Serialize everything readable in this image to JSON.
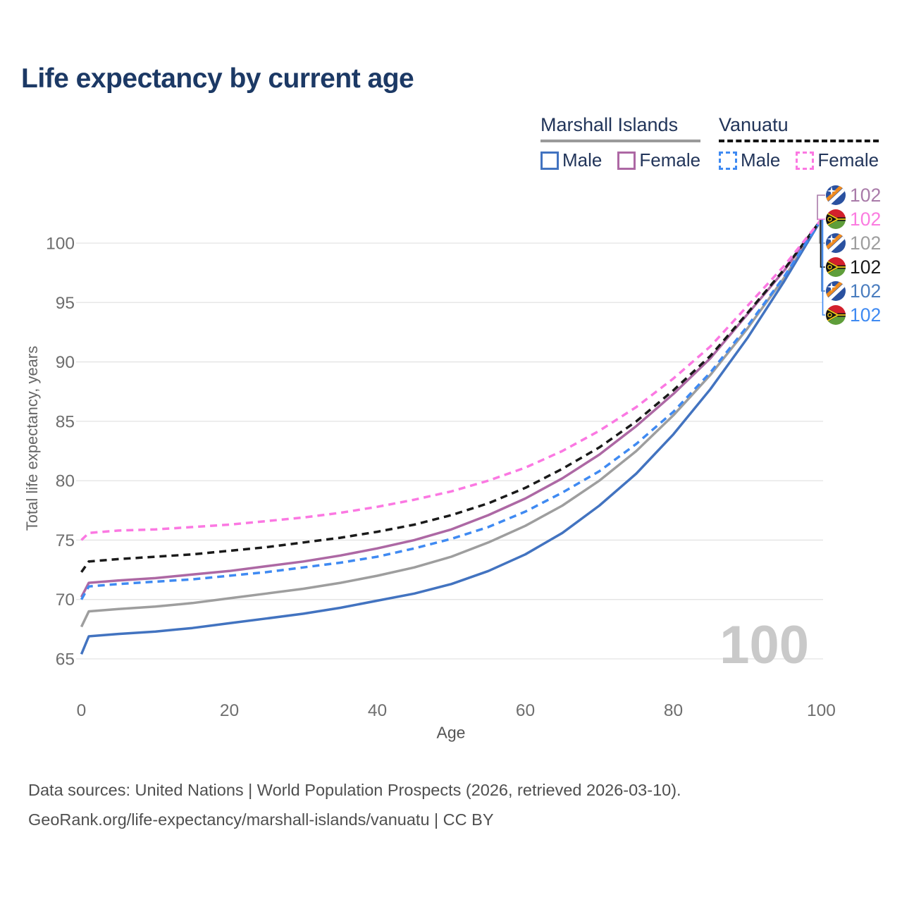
{
  "title": "Life expectancy by current age",
  "legend": {
    "groups": [
      {
        "label": "Marshall Islands",
        "underline": "solid",
        "underline_color": "#9a9a9a",
        "items": [
          {
            "label": "Male",
            "color": "#4273c0",
            "dashed": false
          },
          {
            "label": "Female",
            "color": "#ad68a4",
            "dashed": false
          }
        ]
      },
      {
        "label": "Vanuatu",
        "underline": "dashed",
        "underline_color": "#141414",
        "items": [
          {
            "label": "Male",
            "color": "#3f8af2",
            "dashed": true
          },
          {
            "label": "Female",
            "color": "#fb78e2",
            "dashed": true
          }
        ]
      }
    ]
  },
  "chart_data": {
    "type": "line",
    "title": "Life expectancy by current age",
    "xlabel": "Age",
    "ylabel": "Total life expectancy, years",
    "xticks": [
      0,
      20,
      40,
      60,
      80,
      100
    ],
    "yticks": [
      65,
      70,
      75,
      80,
      85,
      90,
      95,
      100
    ],
    "xlim": [
      0,
      100
    ],
    "ylim": [
      63,
      103
    ],
    "grid": "horizontal",
    "legend_position": "top-right",
    "watermark": "100",
    "x_ages": [
      0,
      1,
      5,
      10,
      15,
      20,
      25,
      30,
      35,
      40,
      45,
      50,
      55,
      60,
      65,
      70,
      75,
      80,
      85,
      90,
      95,
      100
    ],
    "series": [
      {
        "id": "mi-total",
        "country": "Marshall Islands",
        "sex": "Total",
        "flag": "mh",
        "color": "#9e9e9e",
        "dashed": false,
        "label_color": "#9e9e9e",
        "label_slot": 2,
        "end_label": "102",
        "values": [
          67.7,
          69.0,
          69.2,
          69.4,
          69.7,
          70.1,
          70.5,
          70.9,
          71.4,
          72.0,
          72.7,
          73.6,
          74.8,
          76.2,
          77.9,
          80.0,
          82.5,
          85.5,
          88.9,
          92.8,
          97.1,
          102
        ]
      },
      {
        "id": "mi-female",
        "country": "Marshall Islands",
        "sex": "Female",
        "flag": "mh",
        "color": "#ad68a4",
        "dashed": false,
        "label_color": "#a97ba9",
        "label_slot": 0,
        "end_label": "102",
        "values": [
          70.2,
          71.4,
          71.6,
          71.8,
          72.1,
          72.4,
          72.8,
          73.2,
          73.7,
          74.3,
          75.0,
          75.9,
          77.1,
          78.5,
          80.2,
          82.2,
          84.6,
          87.3,
          90.3,
          94.0,
          97.7,
          102
        ]
      },
      {
        "id": "mi-male",
        "country": "Marshall Islands",
        "sex": "Male",
        "flag": "mh",
        "color": "#4273c0",
        "dashed": false,
        "label_color": "#4a7dbf",
        "label_slot": 4,
        "end_label": "102",
        "values": [
          65.4,
          66.9,
          67.1,
          67.3,
          67.6,
          68.0,
          68.4,
          68.8,
          69.3,
          69.9,
          70.5,
          71.3,
          72.4,
          73.8,
          75.6,
          77.9,
          80.6,
          83.9,
          87.7,
          92.0,
          96.8,
          102
        ]
      },
      {
        "id": "vu-total",
        "country": "Vanuatu",
        "sex": "Total",
        "flag": "vu",
        "color": "#1a1a1a",
        "dashed": true,
        "label_color": "#1a1a1a",
        "label_slot": 3,
        "end_label": "102",
        "values": [
          72.3,
          73.2,
          73.4,
          73.6,
          73.8,
          74.1,
          74.4,
          74.8,
          75.2,
          75.7,
          76.3,
          77.1,
          78.1,
          79.4,
          81.0,
          82.8,
          85.0,
          87.6,
          90.5,
          94.1,
          97.8,
          102
        ]
      },
      {
        "id": "vu-male",
        "country": "Vanuatu",
        "sex": "Male",
        "flag": "vu",
        "color": "#3f8af2",
        "dashed": true,
        "label_color": "#3f8af2",
        "label_slot": 5,
        "end_label": "102",
        "values": [
          70.0,
          71.1,
          71.3,
          71.5,
          71.7,
          72.0,
          72.3,
          72.7,
          73.1,
          73.6,
          74.3,
          75.1,
          76.1,
          77.4,
          79.0,
          80.8,
          83.1,
          85.8,
          89.1,
          93.0,
          97.2,
          102
        ]
      },
      {
        "id": "vu-female",
        "country": "Vanuatu",
        "sex": "Female",
        "flag": "vu",
        "color": "#fb78e2",
        "dashed": true,
        "label_color": "#fb7ce0",
        "label_slot": 1,
        "end_label": "102",
        "values": [
          75.0,
          75.6,
          75.8,
          75.9,
          76.1,
          76.3,
          76.6,
          76.9,
          77.3,
          77.8,
          78.4,
          79.1,
          80.0,
          81.1,
          82.5,
          84.2,
          86.2,
          88.6,
          91.3,
          94.7,
          98.1,
          102
        ]
      }
    ]
  },
  "footer": {
    "line1": "Data sources: United Nations | World Population Prospects (2026, retrieved 2026-03-10).",
    "line2": "GeoRank.org/life-expectancy/marshall-islands/vanuatu | CC BY"
  }
}
